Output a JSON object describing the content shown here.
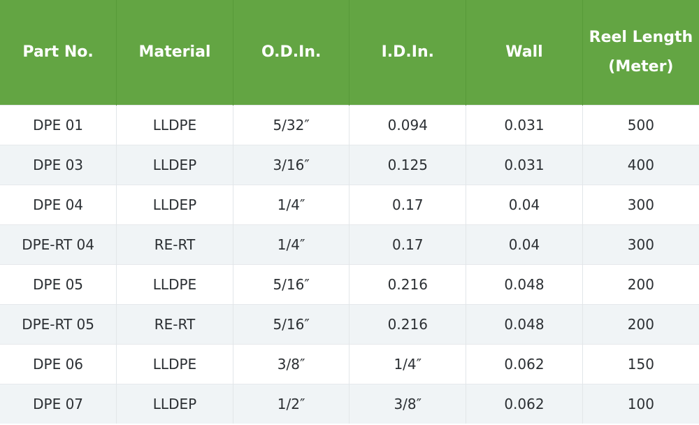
{
  "table": {
    "headers": [
      "Part No.",
      "Material",
      "O.D.In.",
      "I.D.In.",
      "Wall",
      "Reel Length (Meter)"
    ],
    "rows": [
      [
        "DPE 01",
        "LLDPE",
        "5/32″",
        "0.094",
        "0.031",
        "500"
      ],
      [
        "DPE 03",
        "LLDEP",
        "3/16″",
        "0.125",
        "0.031",
        "400"
      ],
      [
        "DPE 04",
        "LLDEP",
        "1/4″",
        "0.17",
        "0.04",
        "300"
      ],
      [
        "DPE-RT 04",
        "RE-RT",
        "1/4″",
        "0.17",
        "0.04",
        "300"
      ],
      [
        "DPE 05",
        "LLDPE",
        "5/16″",
        "0.216",
        "0.048",
        "200"
      ],
      [
        "DPE-RT 05",
        "RE-RT",
        "5/16″",
        "0.216",
        "0.048",
        "200"
      ],
      [
        "DPE 06",
        "LLDPE",
        "3/8″",
        "1/4″",
        "0.062",
        "150"
      ],
      [
        "DPE 07",
        "LLDEP",
        "1/2″",
        "3/8″",
        "0.062",
        "100"
      ]
    ]
  },
  "colors": {
    "header_bg": "#63a543",
    "header_text": "#ffffff",
    "row_alt_bg": "#f0f4f6",
    "cell_text": "#2b2f33"
  }
}
